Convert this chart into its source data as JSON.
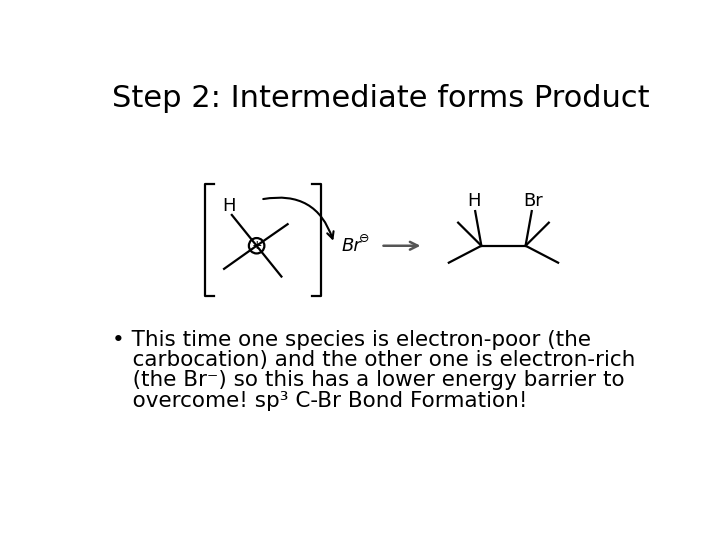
{
  "title": "Step 2: Intermediate forms Product",
  "title_fontsize": 22,
  "background_color": "#ffffff",
  "text_color": "#000000",
  "bullet_lines": [
    "• This time one species is electron-poor (the",
    "   carbocation) and the other one is electron-rich",
    "   (the Br⁻) so this has a lower energy barrier to",
    "   overcome! sp³ C-Br Bond Formation!"
  ],
  "bullet_fontsize": 15.5,
  "lw": 1.6
}
